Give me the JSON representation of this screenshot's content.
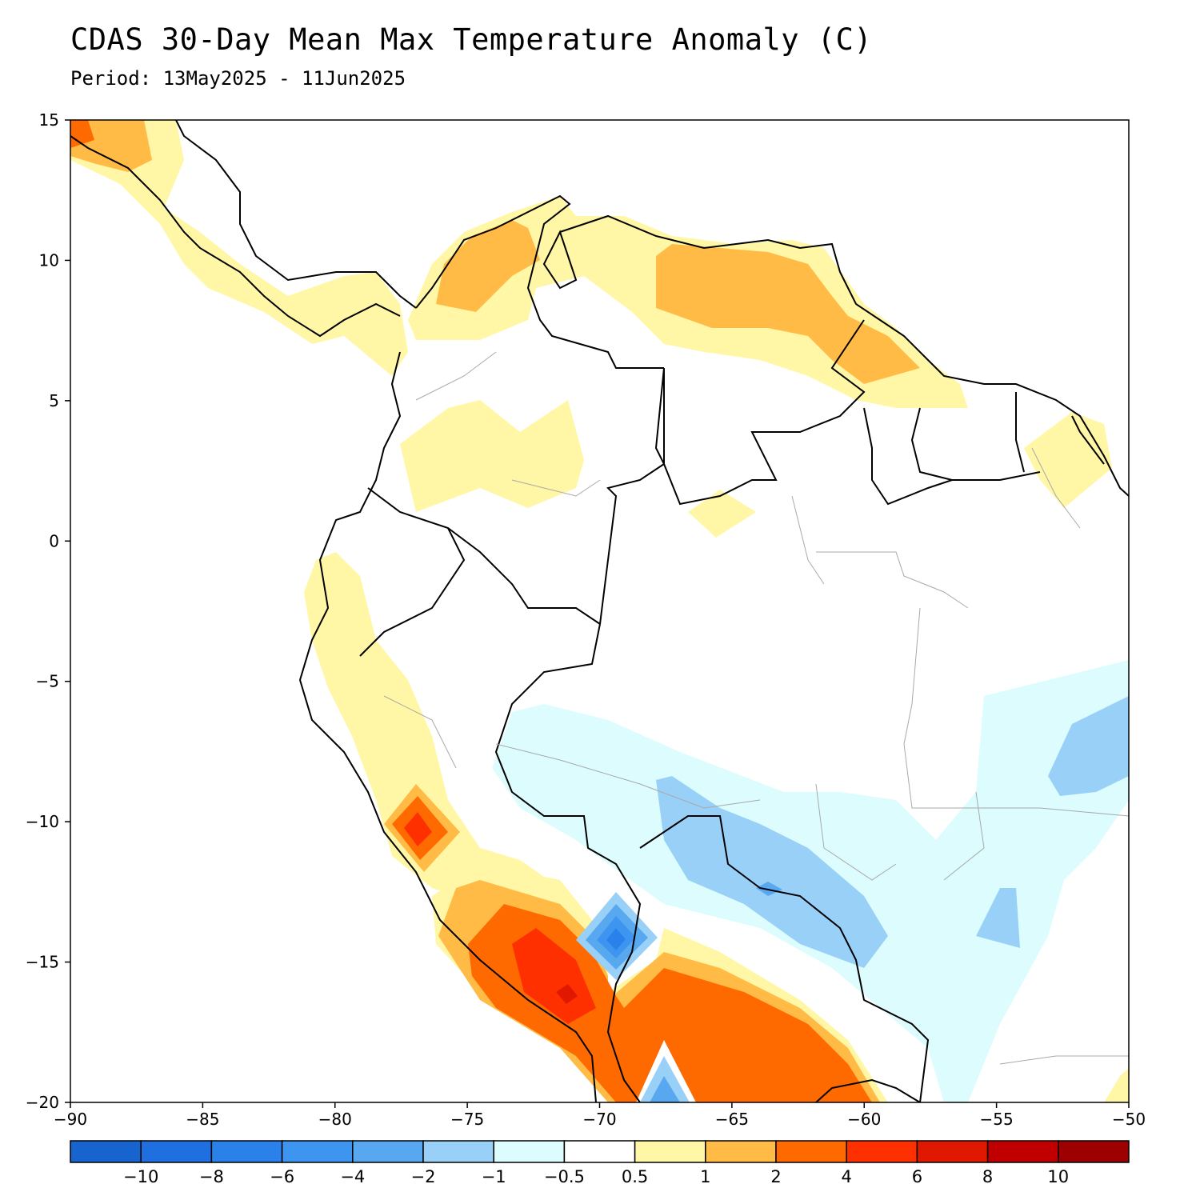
{
  "title": "CDAS 30-Day Mean Max Temperature Anomaly (C)",
  "subtitle": "Period: 13May2025 - 11Jun2025",
  "map": {
    "lon_range": [
      -90,
      -50
    ],
    "lat_range": [
      -20,
      15
    ],
    "lon_ticks": [
      "−90",
      "−85",
      "−80",
      "−75",
      "−70",
      "−65",
      "−60",
      "−55",
      "−50"
    ],
    "lat_ticks": [
      "15",
      "10",
      "5",
      "0",
      "−5",
      "−10",
      "−15",
      "−20"
    ],
    "region": "Northern South America and Central America"
  },
  "colorbar": {
    "labels": [
      "−10",
      "−8",
      "−6",
      "−4",
      "−2",
      "−1",
      "−0.5",
      "0.5",
      "1",
      "2",
      "4",
      "6",
      "8",
      "10"
    ],
    "colors": [
      "#1764cf",
      "#1f6fe0",
      "#2b81ea",
      "#3e95f0",
      "#58a8f0",
      "#98d0f7",
      "#dcfcfd",
      "#ffffff",
      "#fff7a6",
      "#ffbb45",
      "#ff6a00",
      "#ff3000",
      "#e01800",
      "#c00000",
      "#9c0000"
    ]
  },
  "legend_colors": {
    "warm_1": "#fff7a6",
    "warm_2": "#ffbb45",
    "warm_4": "#ff6a00",
    "warm_6": "#ff3000",
    "warm_8": "#e01800",
    "cool_05": "#dcfcfd",
    "cool_1": "#98d0f7",
    "cool_2": "#58a8f0",
    "cool_4": "#3e95f0",
    "cool_6": "#2b81ea"
  }
}
